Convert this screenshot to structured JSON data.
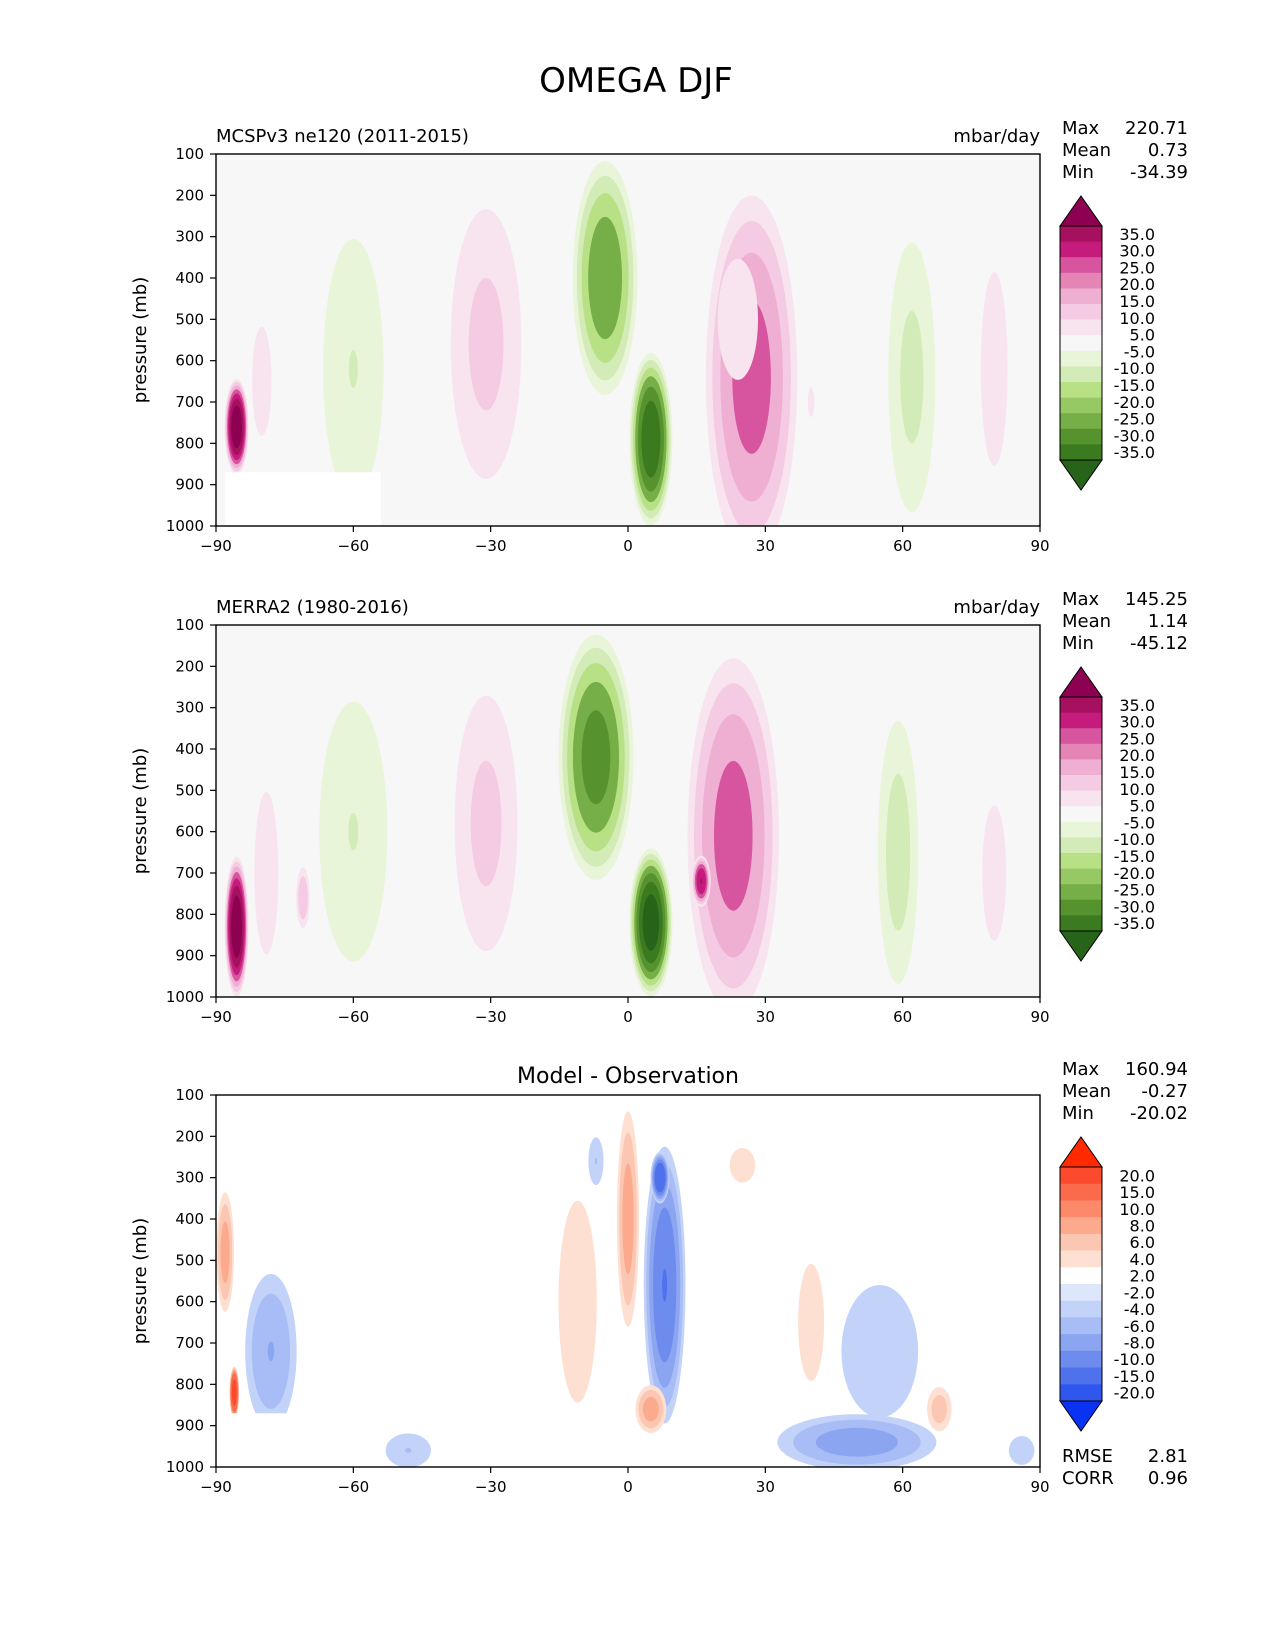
{
  "figure": {
    "title": "OMEGA DJF"
  },
  "panels": [
    {
      "id": "model",
      "left_title": "MCSPv3 ne120 (2011-2015)",
      "center_title": "",
      "units": "mbar/day",
      "ylabel": "pressure (mb)",
      "stats": [
        {
          "label": "Max",
          "value": "220.71"
        },
        {
          "label": "Mean",
          "value": "0.73"
        },
        {
          "label": "Min",
          "value": "-34.39"
        }
      ],
      "colorbar": {
        "labels": [
          "35.0",
          "30.0",
          "25.0",
          "20.0",
          "15.0",
          "10.0",
          "5.0",
          "-5.0",
          "-10.0",
          "-15.0",
          "-20.0",
          "-25.0",
          "-30.0",
          "-35.0"
        ],
        "colors": [
          "#8e0152",
          "#a6115f",
          "#c51b7d",
          "#d6559e",
          "#e485b6",
          "#efafd2",
          "#f4cbe3",
          "#f8e4ef",
          "#f7f7f7",
          "#e9f5d9",
          "#d3ebb7",
          "#b8e186",
          "#96c964",
          "#76ae47",
          "#56932f",
          "#3b7a1f",
          "#276419"
        ]
      },
      "footer_stats": []
    },
    {
      "id": "obs",
      "left_title": "MERRA2 (1980-2016)",
      "center_title": "",
      "units": "mbar/day",
      "ylabel": "pressure (mb)",
      "stats": [
        {
          "label": "Max",
          "value": "145.25"
        },
        {
          "label": "Mean",
          "value": "1.14"
        },
        {
          "label": "Min",
          "value": "-45.12"
        }
      ],
      "colorbar": {
        "labels": [
          "35.0",
          "30.0",
          "25.0",
          "20.0",
          "15.0",
          "10.0",
          "5.0",
          "-5.0",
          "-10.0",
          "-15.0",
          "-20.0",
          "-25.0",
          "-30.0",
          "-35.0"
        ],
        "colors": [
          "#8e0152",
          "#a6115f",
          "#c51b7d",
          "#d6559e",
          "#e485b6",
          "#efafd2",
          "#f4cbe3",
          "#f8e4ef",
          "#f7f7f7",
          "#e9f5d9",
          "#d3ebb7",
          "#b8e186",
          "#96c964",
          "#76ae47",
          "#56932f",
          "#3b7a1f",
          "#276419"
        ]
      },
      "footer_stats": []
    },
    {
      "id": "diff",
      "left_title": "",
      "center_title": "Model - Observation",
      "units": "",
      "ylabel": "pressure (mb)",
      "stats": [
        {
          "label": "Max",
          "value": "160.94"
        },
        {
          "label": "Mean",
          "value": "-0.27"
        },
        {
          "label": "Min",
          "value": "-20.02"
        }
      ],
      "colorbar": {
        "labels": [
          "20.0",
          "15.0",
          "10.0",
          "8.0",
          "6.0",
          "4.0",
          "2.0",
          "-2.0",
          "-4.0",
          "-6.0",
          "-8.0",
          "-10.0",
          "-15.0",
          "-20.0"
        ],
        "colors": [
          "#ff2a00",
          "#fb4a2d",
          "#fb6a4a",
          "#fc8a6a",
          "#fcaa8e",
          "#fcc7b2",
          "#fee0d2",
          "#ffffff",
          "#dde6fb",
          "#c3d2f9",
          "#a8bdf5",
          "#8ba5f1",
          "#6d8cee",
          "#4f72ec",
          "#2f57ee",
          "#0a32f2"
        ]
      },
      "footer_stats": [
        {
          "label": "RMSE",
          "value": "2.81"
        },
        {
          "label": "CORR",
          "value": "0.96"
        }
      ]
    }
  ],
  "chart_data": [
    {
      "type": "heatmap",
      "title": "MCSPv3 ne120 (2011-2015)",
      "units": "mbar/day",
      "xlabel": "",
      "ylabel": "pressure (mb)",
      "xlim": [
        -90,
        90
      ],
      "ylim": [
        1000,
        100
      ],
      "xticks": [
        -90,
        -60,
        -30,
        0,
        30,
        60,
        90
      ],
      "yticks": [
        100,
        200,
        300,
        400,
        500,
        600,
        700,
        800,
        900,
        1000
      ],
      "contour_levels": [
        -35,
        -30,
        -25,
        -20,
        -15,
        -10,
        -5,
        5,
        10,
        15,
        20,
        25,
        30,
        35
      ],
      "stats": {
        "max": 220.71,
        "mean": 0.73,
        "min": -34.39
      },
      "features": [
        {
          "lat": 27,
          "p": 640,
          "lat_halfwidth": 10,
          "p_halfwidth": 440,
          "value": 22
        },
        {
          "lat": 24,
          "p": 500,
          "lat_halfwidth": 6,
          "p_halfwidth": 200,
          "value": 8
        },
        {
          "lat": -5,
          "p": 400,
          "lat_halfwidth": 7,
          "p_halfwidth": 280,
          "value": -24
        },
        {
          "lat": 5,
          "p": 790,
          "lat_halfwidth": 4.5,
          "p_halfwidth": 200,
          "value": -34
        },
        {
          "lat": -31,
          "p": 560,
          "lat_halfwidth": 9,
          "p_halfwidth": 380,
          "value": 11
        },
        {
          "lat": -60,
          "p": 620,
          "lat_halfwidth": 8,
          "p_halfwidth": 380,
          "value": -10
        },
        {
          "lat": 62,
          "p": 640,
          "lat_halfwidth": 6,
          "p_halfwidth": 380,
          "value": -11
        },
        {
          "lat": 80,
          "p": 620,
          "lat_halfwidth": 4,
          "p_halfwidth": 320,
          "value": 8
        },
        {
          "lat": -85.5,
          "p": 760,
          "lat_halfwidth": 2.5,
          "p_halfwidth": 110,
          "value": 40
        },
        {
          "lat": -80,
          "p": 650,
          "lat_halfwidth": 4,
          "p_halfwidth": 250,
          "value": 6
        },
        {
          "lat": 40,
          "p": 700,
          "lat_halfwidth": 6,
          "p_halfwidth": 300,
          "value": 5
        }
      ],
      "masked_region": {
        "lat": [
          -88,
          -54
        ],
        "p": [
          870,
          1000
        ]
      }
    },
    {
      "type": "heatmap",
      "title": "MERRA2 (1980-2016)",
      "units": "mbar/day",
      "xlabel": "",
      "ylabel": "pressure (mb)",
      "xlim": [
        -90,
        90
      ],
      "ylim": [
        1000,
        100
      ],
      "xticks": [
        -90,
        -60,
        -30,
        0,
        30,
        60,
        90
      ],
      "yticks": [
        100,
        200,
        300,
        400,
        500,
        600,
        700,
        800,
        900,
        1000
      ],
      "contour_levels": [
        -35,
        -30,
        -25,
        -20,
        -15,
        -10,
        -5,
        5,
        10,
        15,
        20,
        25,
        30,
        35
      ],
      "stats": {
        "max": 145.25,
        "mean": 1.14,
        "min": -45.12
      },
      "features": [
        {
          "lat": 23,
          "p": 610,
          "lat_halfwidth": 10,
          "p_halfwidth": 430,
          "value": 22
        },
        {
          "lat": 16,
          "p": 720,
          "lat_halfwidth": 2,
          "p_halfwidth": 60,
          "value": 30
        },
        {
          "lat": -7,
          "p": 420,
          "lat_halfwidth": 8,
          "p_halfwidth": 290,
          "value": -27
        },
        {
          "lat": 5,
          "p": 820,
          "lat_halfwidth": 4.5,
          "p_halfwidth": 170,
          "value": -38
        },
        {
          "lat": -31,
          "p": 580,
          "lat_halfwidth": 8,
          "p_halfwidth": 360,
          "value": 11
        },
        {
          "lat": -60,
          "p": 600,
          "lat_halfwidth": 9,
          "p_halfwidth": 380,
          "value": -10
        },
        {
          "lat": 59,
          "p": 650,
          "lat_halfwidth": 5,
          "p_halfwidth": 360,
          "value": -12
        },
        {
          "lat": 80,
          "p": 700,
          "lat_halfwidth": 4,
          "p_halfwidth": 250,
          "value": 7
        },
        {
          "lat": -85.5,
          "p": 830,
          "lat_halfwidth": 2.5,
          "p_halfwidth": 160,
          "value": 40
        },
        {
          "lat": -79,
          "p": 700,
          "lat_halfwidth": 4,
          "p_halfwidth": 300,
          "value": 7
        },
        {
          "lat": -71,
          "p": 760,
          "lat_halfwidth": 1.6,
          "p_halfwidth": 80,
          "value": 14
        }
      ],
      "masked_region": null
    },
    {
      "type": "heatmap",
      "title": "Model - Observation",
      "units": "",
      "xlabel": "",
      "ylabel": "pressure (mb)",
      "xlim": [
        -90,
        90
      ],
      "ylim": [
        1000,
        100
      ],
      "xticks": [
        -90,
        -60,
        -30,
        0,
        30,
        60,
        90
      ],
      "yticks": [
        100,
        200,
        300,
        400,
        500,
        600,
        700,
        800,
        900,
        1000
      ],
      "contour_levels": [
        -20,
        -15,
        -10,
        -8,
        -6,
        -4,
        -2,
        2,
        4,
        6,
        8,
        10,
        15,
        20
      ],
      "stats": {
        "max": 160.94,
        "mean": -0.27,
        "min": -20.02,
        "rmse": 2.81,
        "corr": 0.96
      },
      "features": [
        {
          "lat": 8,
          "p": 560,
          "lat_halfwidth": 4.5,
          "p_halfwidth": 330,
          "value": -10
        },
        {
          "lat": 7,
          "p": 300,
          "lat_halfwidth": 2,
          "p_halfwidth": 60,
          "value": -13
        },
        {
          "lat": 0,
          "p": 400,
          "lat_halfwidth": 2.5,
          "p_halfwidth": 270,
          "value": 7
        },
        {
          "lat": 5,
          "p": 860,
          "lat_halfwidth": 3.5,
          "p_halfwidth": 60,
          "value": 7
        },
        {
          "lat": -11,
          "p": 600,
          "lat_halfwidth": 6,
          "p_halfwidth": 350,
          "value": 3
        },
        {
          "lat": -7,
          "p": 260,
          "lat_halfwidth": 2,
          "p_halfwidth": 70,
          "value": -4
        },
        {
          "lat": 50,
          "p": 940,
          "lat_halfwidth": 18,
          "p_halfwidth": 70,
          "value": -7
        },
        {
          "lat": 55,
          "p": 720,
          "lat_halfwidth": 12,
          "p_halfwidth": 230,
          "value": -3
        },
        {
          "lat": -48,
          "p": 960,
          "lat_halfwidth": 6,
          "p_halfwidth": 50,
          "value": -4
        },
        {
          "lat": -88,
          "p": 480,
          "lat_halfwidth": 2,
          "p_halfwidth": 150,
          "value": 7
        },
        {
          "lat": -78,
          "p": 720,
          "lat_halfwidth": 6,
          "p_halfwidth": 200,
          "value": -6
        },
        {
          "lat": -86,
          "p": 820,
          "lat_halfwidth": 1,
          "p_halfwidth": 60,
          "value": 18
        },
        {
          "lat": 25,
          "p": 270,
          "lat_halfwidth": 4,
          "p_halfwidth": 60,
          "value": 3
        },
        {
          "lat": 40,
          "p": 650,
          "lat_halfwidth": 5,
          "p_halfwidth": 250,
          "value": 2.5
        },
        {
          "lat": 68,
          "p": 860,
          "lat_halfwidth": 3,
          "p_halfwidth": 60,
          "value": 5
        },
        {
          "lat": 86,
          "p": 960,
          "lat_halfwidth": 4,
          "p_halfwidth": 50,
          "value": -3
        }
      ],
      "masked_region": {
        "lat": [
          -88,
          -54
        ],
        "p": [
          870,
          1000
        ]
      }
    }
  ]
}
